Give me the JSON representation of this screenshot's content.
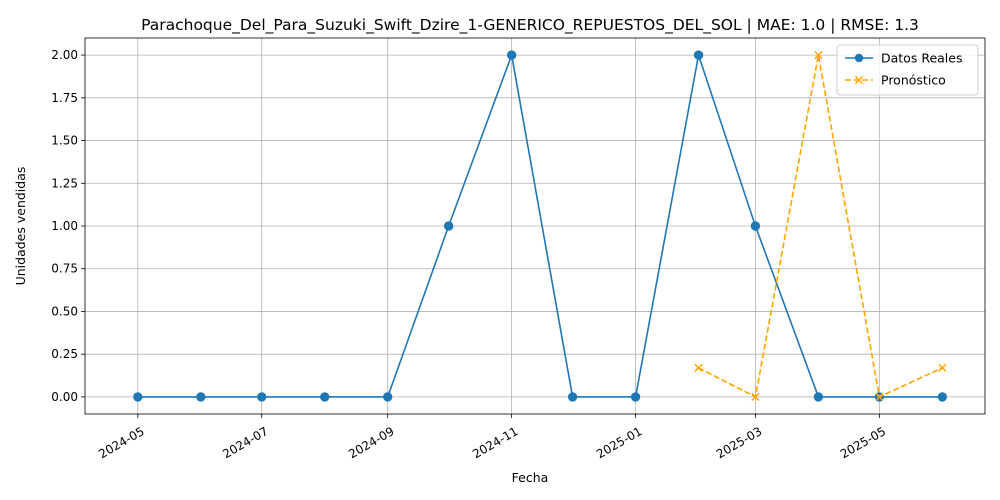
{
  "chart_data": {
    "type": "line",
    "title": "Parachoque_Del_Para_Suzuki_Swift_Dzire_1-GENERICO_REPUESTOS_DEL_SOL | MAE: 1.0 | RMSE: 1.3",
    "xlabel": "Fecha",
    "ylabel": "Unidades vendidas",
    "xlim": [
      "2024-04-05",
      "2025-06-22"
    ],
    "ylim": [
      -0.1,
      2.1
    ],
    "x_ticks": [
      "2024-05",
      "2024-07",
      "2024-09",
      "2024-11",
      "2025-01",
      "2025-03",
      "2025-05"
    ],
    "y_ticks": [
      "0.00",
      "0.25",
      "0.50",
      "0.75",
      "1.00",
      "1.25",
      "1.50",
      "1.75",
      "2.00"
    ],
    "grid": true,
    "legend_position": "top-right",
    "series": [
      {
        "name": "Datos Reales",
        "color": "#1f77b4",
        "line_style": "solid",
        "marker": "circle",
        "x": [
          "2024-05-01",
          "2024-06-01",
          "2024-07-01",
          "2024-08-01",
          "2024-09-01",
          "2024-10-01",
          "2024-11-01",
          "2024-12-01",
          "2025-01-01",
          "2025-02-01",
          "2025-03-01",
          "2025-04-01",
          "2025-05-01",
          "2025-06-01"
        ],
        "y": [
          0,
          0,
          0,
          0,
          0,
          1,
          2,
          0,
          0,
          2,
          1,
          0,
          0,
          0
        ]
      },
      {
        "name": "Pronóstico",
        "color": "#ffa500",
        "line_style": "dashed",
        "marker": "x",
        "x": [
          "2025-02-01",
          "2025-03-01",
          "2025-04-01",
          "2025-05-01",
          "2025-06-01"
        ],
        "y": [
          0.17,
          0,
          2,
          0,
          0.17
        ]
      }
    ]
  }
}
